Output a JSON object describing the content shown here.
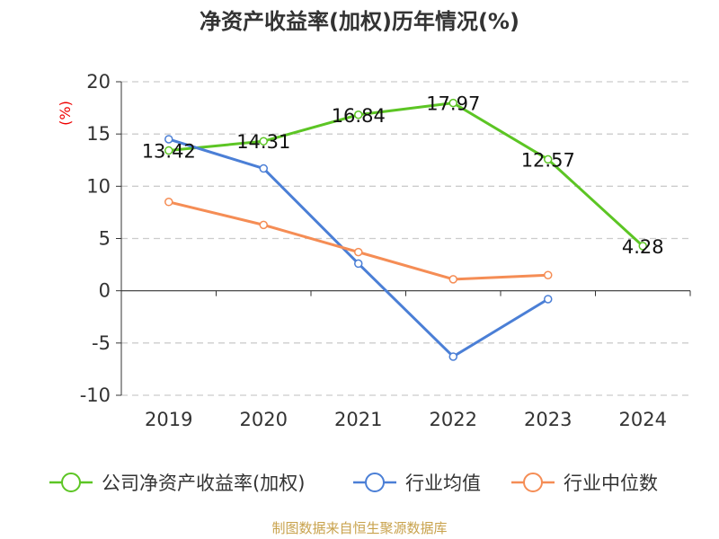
{
  "chart_data": {
    "type": "line",
    "title": "净资产收益率(加权)历年情况(%)",
    "ylabel": "(%)",
    "xlabel": "",
    "categories": [
      "2019",
      "2020",
      "2021",
      "2022",
      "2023",
      "2024"
    ],
    "ylim": [
      -10,
      20
    ],
    "yticks": [
      20,
      15,
      10,
      5,
      0,
      -5,
      -10
    ],
    "grid": true,
    "legend_position": "bottom",
    "series": [
      {
        "name": "公司净资产收益率(加权)",
        "color": "#5cc524",
        "values": [
          13.42,
          14.31,
          16.84,
          17.97,
          12.57,
          4.28
        ],
        "labels": [
          "13.42",
          "14.31",
          "16.84",
          "17.97",
          "12.57",
          "4.28"
        ]
      },
      {
        "name": "行业均值",
        "color": "#4b7fd6",
        "values": [
          14.5,
          11.7,
          2.6,
          -6.3,
          -0.8,
          null
        ]
      },
      {
        "name": "行业中位数",
        "color": "#f58d55",
        "values": [
          8.5,
          6.3,
          3.7,
          1.1,
          1.5,
          null
        ]
      }
    ],
    "source": "制图数据来自恒生聚源数据库"
  }
}
